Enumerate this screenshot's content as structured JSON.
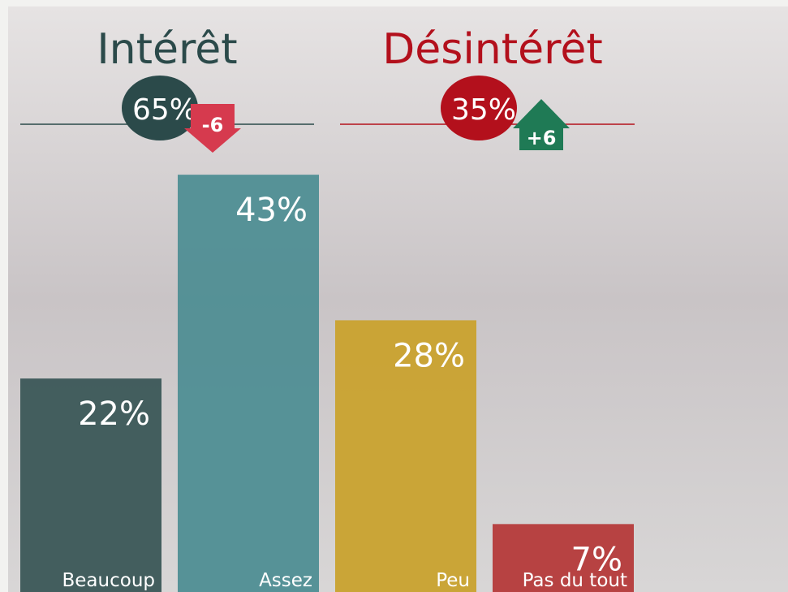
{
  "chart_data": {
    "type": "bar",
    "categories": [
      "Beaucoup",
      "Assez",
      "Peu",
      "Pas du tout"
    ],
    "series": [
      {
        "values": [
          22,
          43,
          28,
          7
        ],
        "value_labels": [
          "22%",
          "43%",
          "28%",
          "7%"
        ],
        "colors": [
          "#3b5757",
          "#4f8e94",
          "#c9a22e",
          "#b53a3a"
        ]
      }
    ],
    "groups": [
      {
        "name": "Intérêt",
        "color": "#2b4a4a",
        "total": 65,
        "total_label": "65%",
        "change": -6,
        "change_label": "-6",
        "change_color": "#d63a4e"
      },
      {
        "name": "Désintérêt",
        "color": "#b3101c",
        "total": 35,
        "total_label": "35%",
        "change": 6,
        "change_label": "+6",
        "change_color": "#1f7a55"
      }
    ]
  }
}
